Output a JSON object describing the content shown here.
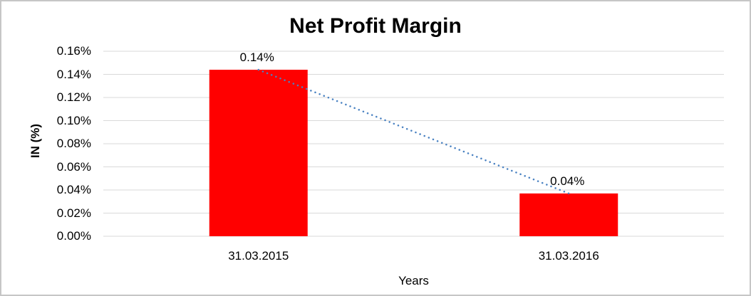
{
  "chart_data": {
    "type": "bar",
    "title": "Net Profit Margin",
    "categories": [
      "31.03.2015",
      "31.03.2016"
    ],
    "values": [
      0.144,
      0.037
    ],
    "data_labels": [
      "0.14%",
      "0.04%"
    ],
    "xlabel": "Years",
    "ylabel": "IN (%)",
    "ylim": [
      0,
      0.16
    ],
    "y_tick_step": 0.02,
    "y_tick_labels": [
      "0.00%",
      "0.02%",
      "0.04%",
      "0.06%",
      "0.08%",
      "0.10%",
      "0.12%",
      "0.14%",
      "0.16%"
    ],
    "grid": true,
    "legend": "none",
    "bar_color": "#ff0000",
    "gridline_color": "#d9d9d9",
    "trendline": {
      "type": "linear",
      "style": "dotted",
      "color": "#4a82c2"
    }
  }
}
